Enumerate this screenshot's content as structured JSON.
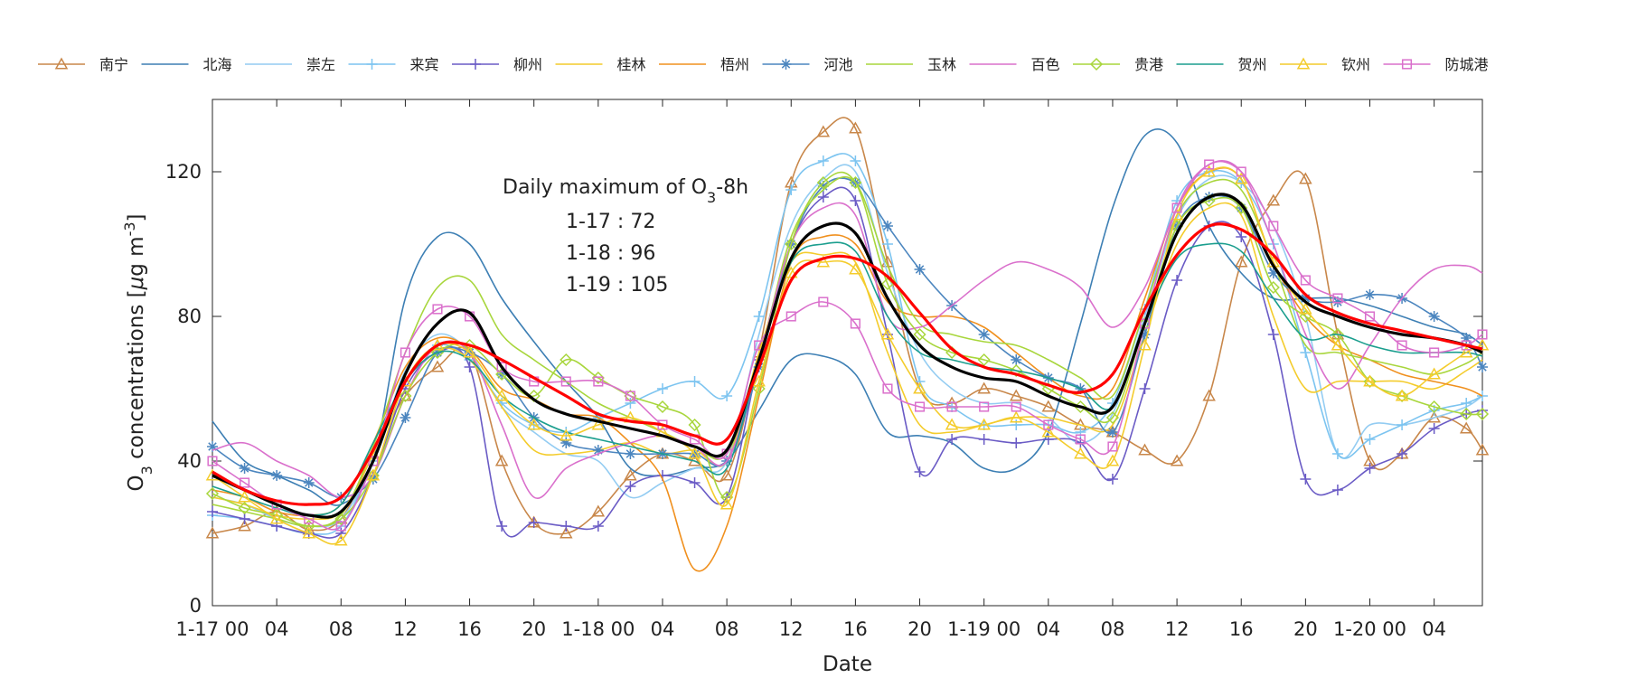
{
  "chart_data": {
    "type": "line",
    "xlabel": "Date",
    "ylabel_parts": {
      "prefix": "O",
      "sub": "3",
      "mid": " concentrations [",
      "mu": "μ",
      "unit": "g m",
      "sup": "-3",
      "close": "]"
    },
    "ylim": [
      0,
      140
    ],
    "yticks": [
      0,
      40,
      80,
      120
    ],
    "ytick_labels": [
      "0",
      "40",
      "80",
      "120"
    ],
    "xlim": [
      0,
      79
    ],
    "xticks": [
      0,
      4,
      8,
      12,
      16,
      20,
      24,
      28,
      32,
      36,
      40,
      44,
      48,
      52,
      56,
      60,
      64,
      68,
      72,
      76
    ],
    "xtick_labels": [
      "1-17 00",
      "04",
      "08",
      "12",
      "16",
      "20",
      "1-18 00",
      "04",
      "08",
      "12",
      "16",
      "20",
      "1-19 00",
      "04",
      "08",
      "12",
      "16",
      "20",
      "1-20 00",
      "04"
    ],
    "annotation": {
      "title_prefix": "Daily maximum of O",
      "title_sub": "3",
      "title_suffix": "-8h",
      "lines": [
        "1-17 : 72",
        "1-18 : 96",
        "1-19 : 105"
      ]
    },
    "x": [
      0,
      2,
      4,
      6,
      8,
      10,
      12,
      14,
      16,
      18,
      20,
      22,
      24,
      26,
      28,
      30,
      32,
      34,
      36,
      38,
      40,
      42,
      44,
      46,
      48,
      50,
      52,
      54,
      56,
      58,
      60,
      62,
      64,
      66,
      68,
      70,
      72,
      74,
      76,
      78,
      79
    ],
    "series": [
      {
        "name": "南宁",
        "color": "#C8874A",
        "marker": "triangle",
        "values": [
          20,
          22,
          26,
          21,
          24,
          42,
          58,
          66,
          70,
          40,
          23,
          20,
          26,
          36,
          42,
          40,
          36,
          70,
          117,
          131,
          132,
          95,
          60,
          56,
          60,
          58,
          55,
          50,
          48,
          43,
          40,
          58,
          95,
          112,
          118,
          75,
          40,
          42,
          52,
          49,
          43
        ]
      },
      {
        "name": "北海",
        "color": "#3D7FB4",
        "marker": "none",
        "values": [
          51,
          40,
          36,
          32,
          28,
          40,
          85,
          102,
          100,
          85,
          73,
          62,
          52,
          38,
          36,
          38,
          40,
          54,
          68,
          69,
          64,
          48,
          47,
          45,
          38,
          38,
          48,
          78,
          110,
          130,
          128,
          105,
          92,
          85,
          85,
          85,
          83,
          80,
          77,
          75,
          72
        ]
      },
      {
        "name": "崇左",
        "color": "#93CCF2",
        "marker": "none",
        "values": [
          30,
          28,
          24,
          22,
          24,
          40,
          65,
          75,
          70,
          55,
          48,
          42,
          40,
          30,
          34,
          38,
          40,
          75,
          105,
          118,
          120,
          92,
          70,
          60,
          56,
          56,
          52,
          45,
          53,
          80,
          107,
          118,
          117,
          105,
          80,
          42,
          50,
          50,
          52,
          55,
          58
        ]
      },
      {
        "name": "来宾",
        "color": "#7CC4F0",
        "marker": "plus",
        "values": [
          25,
          24,
          22,
          20,
          22,
          40,
          62,
          72,
          68,
          56,
          50,
          48,
          52,
          56,
          60,
          62,
          58,
          80,
          115,
          123,
          123,
          100,
          62,
          55,
          50,
          50,
          50,
          48,
          56,
          82,
          112,
          120,
          117,
          100,
          70,
          42,
          46,
          50,
          54,
          56,
          58
        ]
      },
      {
        "name": "柳州",
        "color": "#6A5BC5",
        "marker": "plus",
        "values": [
          26,
          24,
          22,
          20,
          20,
          36,
          60,
          70,
          66,
          22,
          23,
          22,
          22,
          33,
          36,
          34,
          30,
          68,
          100,
          113,
          112,
          75,
          37,
          46,
          46,
          45,
          46,
          45,
          35,
          60,
          90,
          105,
          102,
          75,
          35,
          32,
          38,
          42,
          49,
          53,
          54
        ]
      },
      {
        "name": "桂林",
        "color": "#F4CC2C",
        "marker": "none",
        "values": [
          30,
          28,
          25,
          24,
          26,
          42,
          62,
          71,
          68,
          55,
          43,
          42,
          43,
          45,
          42,
          43,
          40,
          70,
          95,
          97,
          95,
          70,
          50,
          48,
          50,
          52,
          52,
          50,
          50,
          75,
          100,
          110,
          108,
          80,
          60,
          62,
          62,
          62,
          60,
          65,
          68
        ]
      },
      {
        "name": "梧州",
        "color": "#F0901E",
        "marker": "none",
        "values": [
          32,
          30,
          26,
          25,
          28,
          45,
          66,
          74,
          71,
          60,
          57,
          53,
          52,
          45,
          35,
          10,
          22,
          58,
          95,
          102,
          100,
          84,
          80,
          80,
          77,
          70,
          63,
          58,
          60,
          85,
          110,
          120,
          118,
          95,
          80,
          72,
          68,
          64,
          62,
          60,
          58
        ]
      },
      {
        "name": "河池",
        "color": "#4C86BF",
        "marker": "star",
        "values": [
          44,
          38,
          36,
          34,
          30,
          35,
          52,
          70,
          70,
          64,
          52,
          45,
          43,
          42,
          42,
          42,
          40,
          66,
          100,
          116,
          117,
          105,
          93,
          83,
          75,
          68,
          63,
          60,
          48,
          75,
          105,
          113,
          110,
          92,
          85,
          84,
          86,
          85,
          80,
          74,
          66
        ]
      },
      {
        "name": "玉林",
        "color": "#A8D63C",
        "marker": "none",
        "values": [
          28,
          26,
          24,
          22,
          25,
          44,
          70,
          88,
          90,
          75,
          68,
          62,
          56,
          52,
          48,
          44,
          42,
          68,
          102,
          115,
          117,
          94,
          78,
          75,
          73,
          72,
          68,
          63,
          58,
          82,
          108,
          117,
          115,
          95,
          72,
          70,
          68,
          66,
          64,
          67,
          70
        ]
      },
      {
        "name": "百色",
        "color": "#DA70CC",
        "marker": "none",
        "values": [
          43,
          45,
          40,
          36,
          30,
          36,
          58,
          72,
          70,
          50,
          30,
          38,
          42,
          45,
          47,
          44,
          40,
          68,
          100,
          110,
          108,
          80,
          77,
          83,
          90,
          95,
          93,
          88,
          77,
          88,
          110,
          122,
          120,
          100,
          75,
          60,
          72,
          85,
          93,
          94,
          92
        ]
      },
      {
        "name": "贵港",
        "color": "#A8D63C",
        "marker": "diamond",
        "values": [
          31,
          27,
          25,
          22,
          24,
          36,
          58,
          70,
          72,
          64,
          58,
          68,
          63,
          58,
          55,
          50,
          30,
          60,
          100,
          117,
          117,
          89,
          75,
          70,
          68,
          65,
          60,
          55,
          52,
          78,
          105,
          112,
          110,
          88,
          80,
          75,
          62,
          58,
          55,
          53,
          53
        ]
      },
      {
        "name": "贺州",
        "color": "#1B9E8E",
        "marker": "none",
        "values": [
          33,
          30,
          27,
          25,
          28,
          45,
          62,
          70,
          68,
          58,
          52,
          48,
          46,
          44,
          42,
          40,
          38,
          68,
          95,
          100,
          98,
          80,
          70,
          68,
          66,
          65,
          63,
          60,
          55,
          78,
          96,
          100,
          98,
          85,
          74,
          75,
          72,
          70,
          70,
          70,
          69
        ]
      },
      {
        "name": "钦州",
        "color": "#F4CC2C",
        "marker": "triangle",
        "values": [
          36,
          30,
          24,
          20,
          18,
          36,
          62,
          72,
          70,
          58,
          50,
          47,
          50,
          52,
          48,
          42,
          28,
          62,
          92,
          95,
          93,
          75,
          60,
          50,
          50,
          52,
          48,
          42,
          40,
          72,
          108,
          120,
          118,
          95,
          82,
          72,
          62,
          58,
          64,
          70,
          72
        ]
      },
      {
        "name": "防城港",
        "color": "#DA70CC",
        "marker": "square",
        "values": [
          40,
          34,
          28,
          24,
          22,
          40,
          70,
          82,
          80,
          66,
          62,
          62,
          62,
          58,
          50,
          46,
          42,
          72,
          80,
          84,
          78,
          60,
          55,
          55,
          55,
          55,
          50,
          46,
          44,
          78,
          110,
          122,
          120,
          105,
          90,
          85,
          80,
          72,
          70,
          72,
          75
        ]
      },
      {
        "name": "mean",
        "legend": false,
        "color": "#000000",
        "marker": "none",
        "width": 3.2,
        "values": [
          36,
          32,
          28,
          25,
          26,
          40,
          64,
          78,
          81,
          66,
          57,
          53,
          51,
          49,
          47,
          44,
          43,
          68,
          96,
          105,
          103,
          85,
          72,
          66,
          63,
          62,
          58,
          55,
          55,
          78,
          103,
          113,
          111,
          94,
          84,
          80,
          77,
          75,
          74,
          72,
          70
        ]
      },
      {
        "name": "mean-smooth",
        "legend": false,
        "color": "#FF0000",
        "marker": "none",
        "width": 3.2,
        "values": [
          37,
          32,
          29,
          28,
          30,
          43,
          62,
          72,
          72,
          68,
          63,
          58,
          53,
          51,
          50,
          47,
          46,
          66,
          90,
          96,
          96,
          91,
          81,
          71,
          66,
          64,
          61,
          59,
          64,
          82,
          97,
          105,
          104,
          97,
          86,
          81,
          78,
          76,
          74,
          72,
          71
        ]
      }
    ]
  }
}
